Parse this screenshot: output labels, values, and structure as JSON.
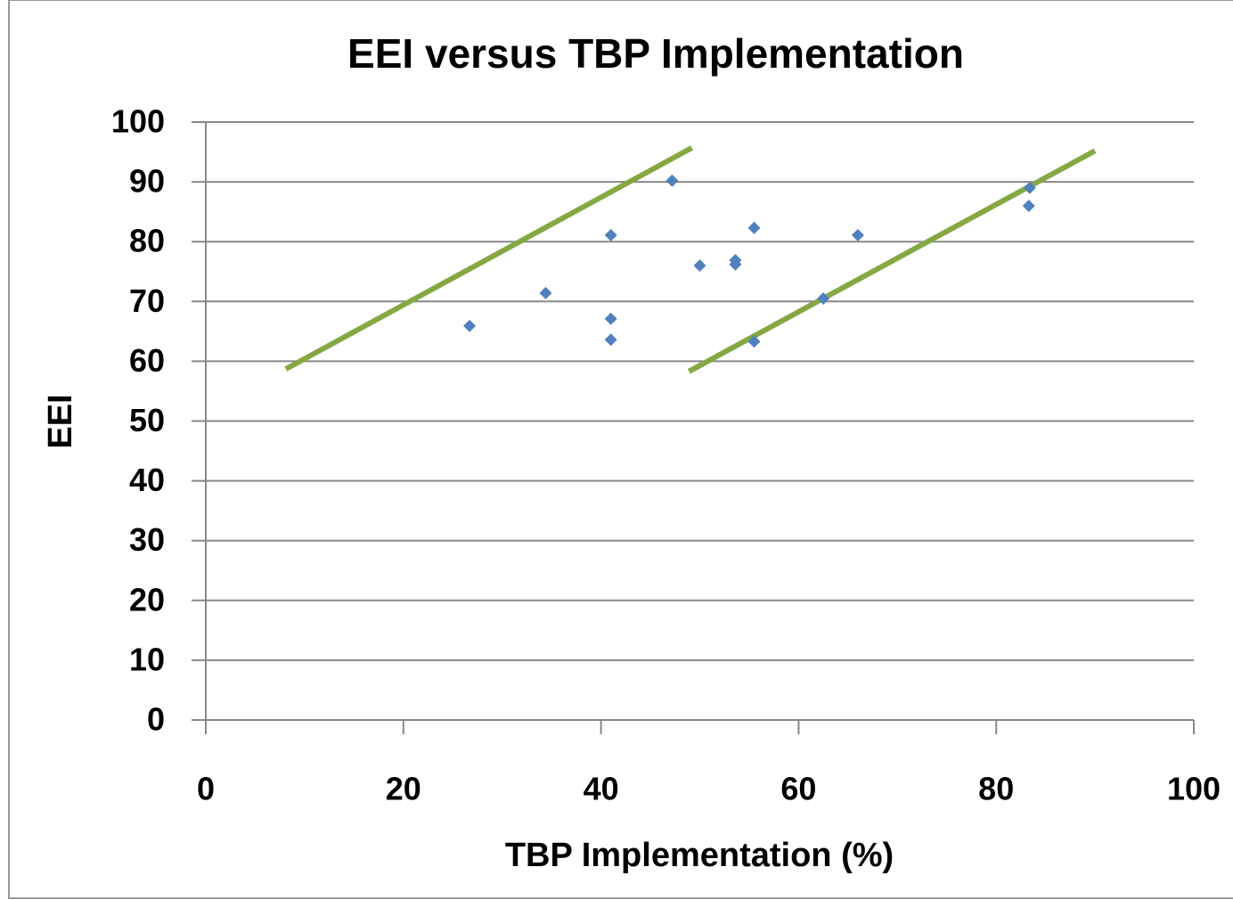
{
  "chart_data": {
    "type": "scatter",
    "title": "EEI versus TBP Implementation",
    "x_label": "TBP Implementation (%)",
    "y_label": "EEI",
    "series": [
      {
        "color": "#4f81bd",
        "x": [
          26.7,
          34.4,
          41.0,
          41.0,
          41.0,
          47.2,
          50.0,
          53.6,
          53.6,
          55.5,
          55.5,
          62.5,
          66.0,
          83.4,
          83.3
        ],
        "values": [
          65.9,
          71.4,
          81.1,
          67.1,
          63.6,
          90.2,
          76.0,
          76.9,
          76.2,
          82.3,
          63.3,
          70.5,
          81.1,
          89.0,
          86.0
        ]
      }
    ],
    "lines": [
      {
        "color": "#86a844",
        "x": [
          8.1,
          49.2
        ],
        "values": [
          58.7,
          95.7
        ]
      },
      {
        "color": "#86a844",
        "x": [
          48.9,
          90.0
        ],
        "values": [
          58.3,
          95.2
        ]
      }
    ],
    "xlim": [
      0,
      100
    ],
    "xticks": [
      0,
      20,
      40,
      60,
      80,
      100
    ],
    "ylim": [
      0,
      100
    ],
    "yticks": [
      0,
      10,
      20,
      30,
      40,
      50,
      60,
      70,
      80,
      90,
      100
    ],
    "grid": true
  }
}
